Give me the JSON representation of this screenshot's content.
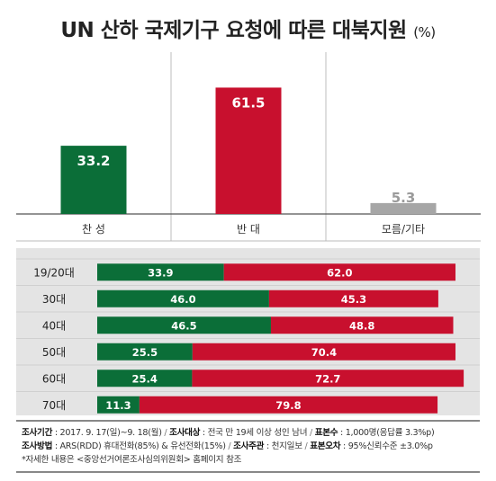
{
  "title": "UN 산하 국제기구 요청에 따른 대북지원",
  "title_unit": "(%)",
  "colors": {
    "support": "#0b6e38",
    "oppose": "#c8102e",
    "other": "#a6a6a6"
  },
  "chart_data": [
    {
      "type": "bar",
      "categories": [
        "찬 성",
        "반 대",
        "모름/기타"
      ],
      "values": [
        33.2,
        61.5,
        5.3
      ],
      "value_labels": [
        "33.2",
        "61.5",
        "5.3"
      ],
      "ylim": [
        0,
        70
      ]
    },
    {
      "type": "bar",
      "orientation": "horizontal",
      "stacked": true,
      "categories": [
        "19/20대",
        "30대",
        "40대",
        "50대",
        "60대",
        "70대"
      ],
      "series": [
        {
          "values": [
            33.9,
            46.0,
            46.5,
            25.5,
            25.4,
            11.3
          ],
          "labels": [
            "33.9",
            "46.0",
            "46.5",
            "25.5",
            "25.4",
            "11.3"
          ]
        },
        {
          "values": [
            62.0,
            45.3,
            48.8,
            70.4,
            72.7,
            79.8
          ],
          "labels": [
            "62.0",
            "45.3",
            "48.8",
            "70.4",
            "72.7",
            "79.8"
          ]
        }
      ],
      "xlim": [
        0,
        100
      ]
    }
  ],
  "footer": {
    "line1": [
      {
        "label": "조사기간",
        "value": " : 2017. 9. 17(일)~9. 18(월) "
      },
      {
        "label": "조사대상",
        "value": " : 전국 만 19세 이상 성인 남녀 "
      },
      {
        "label": "표본수",
        "value": " : 1,000명(응답률 3.3%p)"
      }
    ],
    "line2": [
      {
        "label": "조사방법",
        "value": " : ARS(RDD) 휴대전화(85%) & 유선전화(15%) "
      },
      {
        "label": "조사주관",
        "value": " : 천지일보 "
      },
      {
        "label": "표본오차",
        "value": " : 95%신뢰수준 ±3.0%p"
      }
    ],
    "note": "*자세한 내용은 <중앙선거여론조사심의위원회> 홈페이지 참조"
  }
}
